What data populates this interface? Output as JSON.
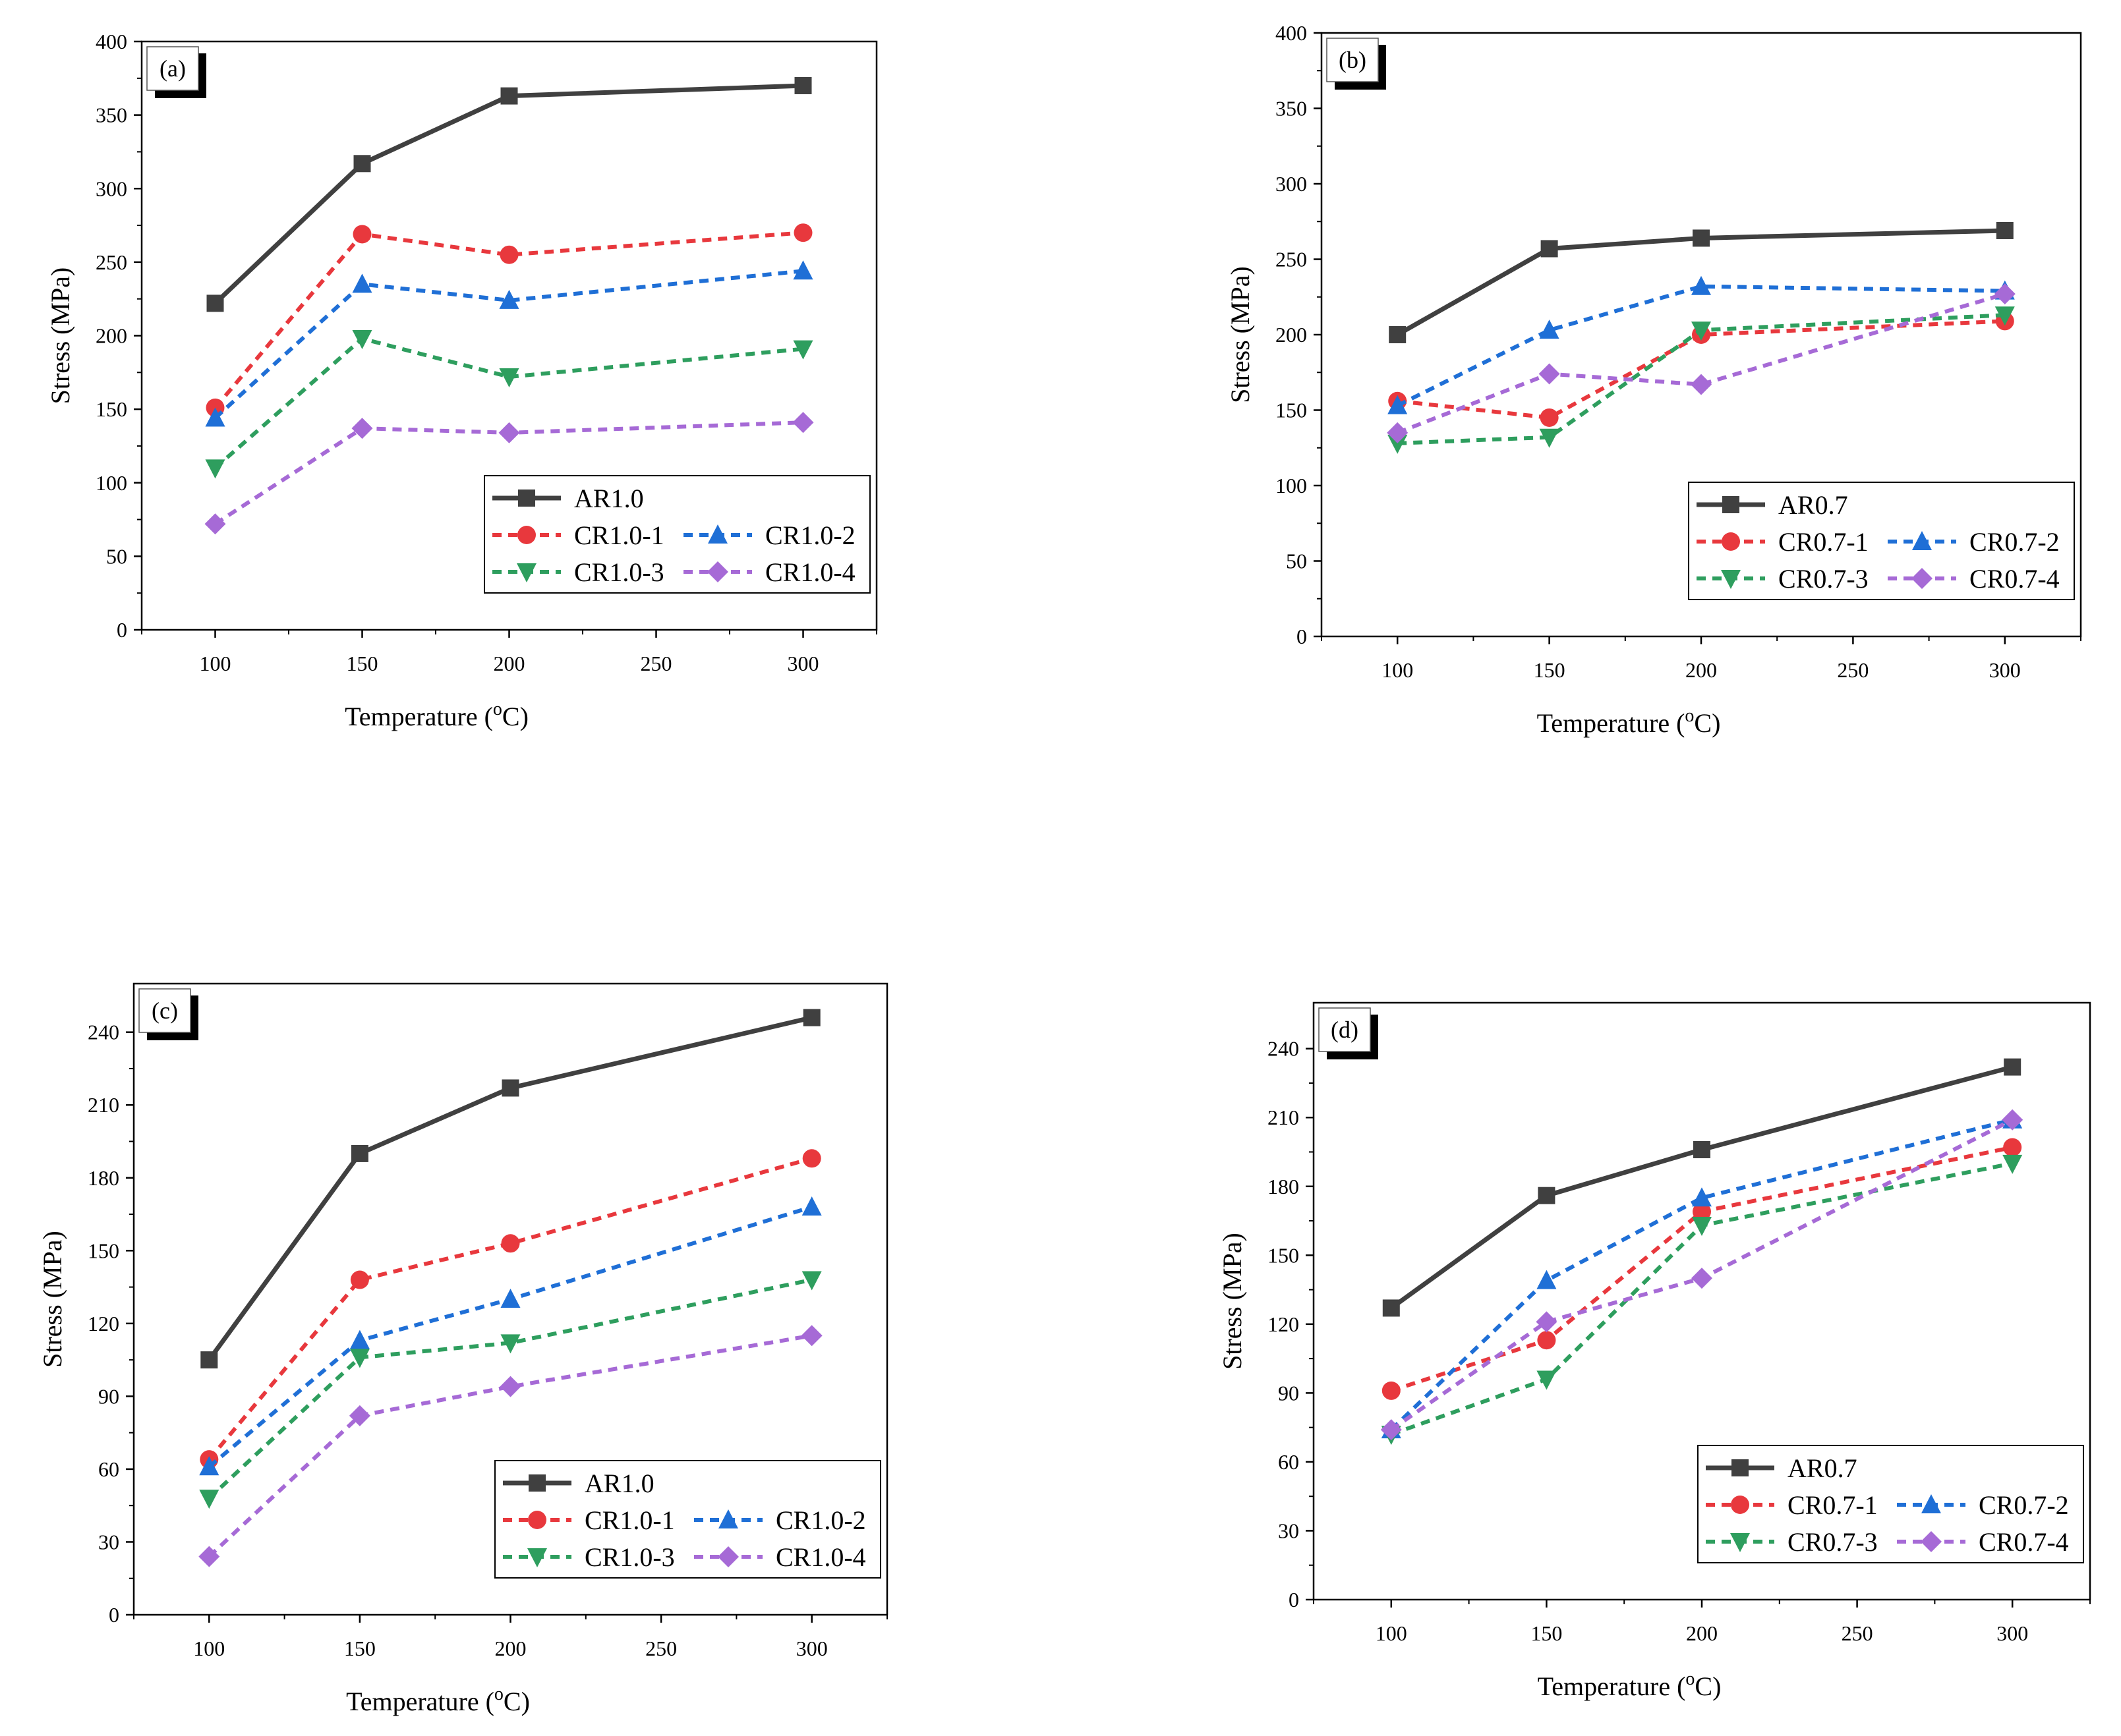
{
  "figure": {
    "series_colors": {
      "AR": "#404040",
      "CR-1": "#e8383d",
      "CR-2": "#1f6fd6",
      "CR-3": "#2e9e5e",
      "CR-4": "#a66ad6"
    },
    "marker_shapes": {
      "AR": "square",
      "CR-1": "circle",
      "CR-2": "triangle-up",
      "CR-3": "triangle-down",
      "CR-4": "diamond"
    }
  },
  "chart_data": [
    {
      "panel": "(a)",
      "type": "line",
      "xlabel": "Temperature (",
      "xlabel_sup": "o",
      "xlabel_unit": "C)",
      "ylabel": "Stress (MPa)",
      "xlim": [
        75,
        325
      ],
      "ylim": [
        0,
        400
      ],
      "xticks": [
        100,
        150,
        200,
        250,
        300
      ],
      "yticks": [
        0,
        50,
        100,
        150,
        200,
        250,
        300,
        350,
        400
      ],
      "legend_position": "lower-right",
      "x": [
        100,
        150,
        200,
        300
      ],
      "series": [
        {
          "name": "AR1.0",
          "key": "AR",
          "values": [
            222,
            317,
            363,
            370
          ]
        },
        {
          "name": "CR1.0-1",
          "key": "CR-1",
          "values": [
            151,
            269,
            255,
            270
          ]
        },
        {
          "name": "CR1.0-2",
          "key": "CR-2",
          "values": [
            144,
            235,
            224,
            244
          ]
        },
        {
          "name": "CR1.0-3",
          "key": "CR-3",
          "values": [
            110,
            198,
            172,
            191
          ]
        },
        {
          "name": "CR1.0-4",
          "key": "CR-4",
          "values": [
            72,
            137,
            134,
            141
          ]
        }
      ]
    },
    {
      "panel": "(b)",
      "type": "line",
      "xlabel": "Temperature (",
      "xlabel_sup": "o",
      "xlabel_unit": "C)",
      "ylabel": "Stress (MPa)",
      "xlim": [
        75,
        325
      ],
      "ylim": [
        0,
        400
      ],
      "xticks": [
        100,
        150,
        200,
        250,
        300
      ],
      "yticks": [
        0,
        50,
        100,
        150,
        200,
        250,
        300,
        350,
        400
      ],
      "legend_position": "lower-right",
      "x": [
        100,
        150,
        200,
        300
      ],
      "series": [
        {
          "name": "AR0.7",
          "key": "AR",
          "values": [
            200,
            257,
            264,
            269
          ]
        },
        {
          "name": "CR0.7-1",
          "key": "CR-1",
          "values": [
            156,
            145,
            200,
            209
          ]
        },
        {
          "name": "CR0.7-2",
          "key": "CR-2",
          "values": [
            153,
            203,
            232,
            229
          ]
        },
        {
          "name": "CR0.7-3",
          "key": "CR-3",
          "values": [
            128,
            132,
            203,
            213
          ]
        },
        {
          "name": "CR0.7-4",
          "key": "CR-4",
          "values": [
            135,
            174,
            167,
            227
          ]
        }
      ]
    },
    {
      "panel": "(c)",
      "type": "line",
      "xlabel": "Temperature (",
      "xlabel_sup": "o",
      "xlabel_unit": "C)",
      "ylabel": "Stress (MPa)",
      "xlim": [
        75,
        325
      ],
      "ylim": [
        0,
        260
      ],
      "xticks": [
        100,
        150,
        200,
        250,
        300
      ],
      "yticks": [
        0,
        30,
        60,
        90,
        120,
        150,
        180,
        210,
        240
      ],
      "legend_position": "lower-right",
      "x": [
        100,
        150,
        200,
        300
      ],
      "series": [
        {
          "name": "AR1.0",
          "key": "AR",
          "values": [
            105,
            190,
            217,
            246
          ]
        },
        {
          "name": "CR1.0-1",
          "key": "CR-1",
          "values": [
            64,
            138,
            153,
            188
          ]
        },
        {
          "name": "CR1.0-2",
          "key": "CR-2",
          "values": [
            61,
            113,
            130,
            168
          ]
        },
        {
          "name": "CR1.0-3",
          "key": "CR-3",
          "values": [
            48,
            106,
            112,
            138
          ]
        },
        {
          "name": "CR1.0-4",
          "key": "CR-4",
          "values": [
            24,
            82,
            94,
            115
          ]
        }
      ]
    },
    {
      "panel": "(d)",
      "type": "line",
      "xlabel": "Temperature (",
      "xlabel_sup": "o",
      "xlabel_unit": "C)",
      "ylabel": "Stress (MPa)",
      "xlim": [
        75,
        325
      ],
      "ylim": [
        0,
        260
      ],
      "xticks": [
        100,
        150,
        200,
        250,
        300
      ],
      "yticks": [
        0,
        30,
        60,
        90,
        120,
        150,
        180,
        210,
        240
      ],
      "legend_position": "lower-right",
      "x": [
        100,
        150,
        200,
        300
      ],
      "series": [
        {
          "name": "AR0.7",
          "key": "AR",
          "values": [
            127,
            176,
            196,
            232
          ]
        },
        {
          "name": "CR0.7-1",
          "key": "CR-1",
          "values": [
            91,
            113,
            169,
            197
          ]
        },
        {
          "name": "CR0.7-2",
          "key": "CR-2",
          "values": [
            74,
            139,
            175,
            209
          ]
        },
        {
          "name": "CR0.7-3",
          "key": "CR-3",
          "values": [
            72,
            96,
            163,
            190
          ]
        },
        {
          "name": "CR0.7-4",
          "key": "CR-4",
          "values": [
            74,
            121,
            140,
            209
          ]
        }
      ]
    }
  ]
}
